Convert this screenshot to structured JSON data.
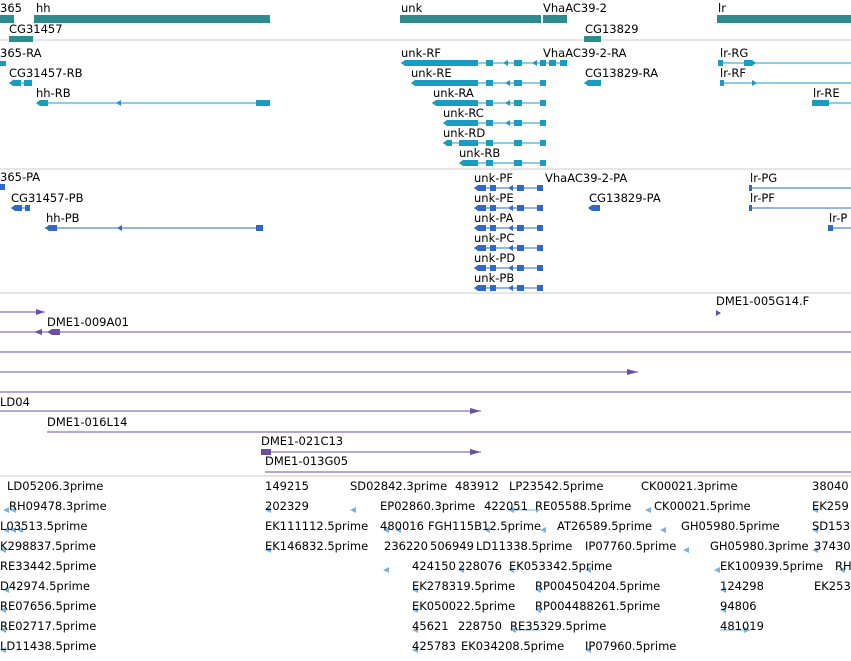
{
  "colors": {
    "gene_teal": "#2e8b8e",
    "transcript_cyan": "#1a9bc0",
    "protein_blue": "#2f68c8",
    "clone_purple": "#6a4fa6",
    "est_lightblue": "#7ab4dc",
    "separator": "#cccccc"
  },
  "tracks": {
    "genes": {
      "labels": [
        "365",
        "hh",
        "CG31457",
        "unk",
        "VhaAC39-2",
        "CG13829",
        "lr"
      ]
    },
    "transcripts": {
      "labels": [
        "365-RA",
        "CG31457-RB",
        "hh-RB",
        "unk-RF",
        "unk-RE",
        "unk-RA",
        "unk-RC",
        "unk-RD",
        "unk-RB",
        "VhaAC39-2-RA",
        "CG13829-RA",
        "lr-RG",
        "lr-RF",
        "lr-RE"
      ]
    },
    "proteins": {
      "labels": [
        "365-PA",
        "CG31457-PB",
        "hh-PB",
        "unk-PF",
        "unk-PE",
        "unk-PA",
        "unk-PC",
        "unk-PD",
        "unk-PB",
        "VhaAC39-2-PA",
        "CG13829-PA",
        "lr-PG",
        "lr-PF",
        "lr-P"
      ]
    },
    "clones": {
      "labels": [
        "DME1-009A01",
        "DME1-005G14.F",
        "LD04",
        "DME1-016L14",
        "DME1-021C13",
        "DME1-013G05"
      ]
    },
    "ests": {
      "labels": [
        "LD05206.3prime",
        "149215",
        "SD02842.3prime",
        "483912",
        "LP23542.5prime",
        "CK00021.3prime",
        "38040",
        "RH09478.3prime",
        "202329",
        "EP02860.3prime",
        "422051",
        "RE05588.5prime",
        "CK00021.5prime",
        "EK259",
        "L03513.5prime",
        "EK111112.5prime",
        "480016",
        "FGH115B12.5prime",
        "AT26589.5prime",
        "GH05980.5prime",
        "SD153",
        "K298837.5prime",
        "EK146832.5prime",
        "236220",
        "506949",
        "LD11338.5prime",
        "IP07760.5prime",
        "GH05980.3prime",
        "37430",
        "RE33442.5prime",
        "424150",
        "228076",
        "EK053342.5prime",
        "EK100939.5prime",
        "RH",
        "D42974.5prime",
        "EK278319.5prime",
        "RP004504204.5prime",
        "124298",
        "EK253",
        "RE07656.5prime",
        "EK050022.5prime",
        "RP004488261.5prime",
        "94806",
        "RE02717.5prime",
        "45621",
        "228750",
        "RE35329.5prime",
        "481019",
        "LD11438.5prime",
        "425783",
        "EK034208.5prime",
        "IP07960.5prime"
      ]
    }
  }
}
